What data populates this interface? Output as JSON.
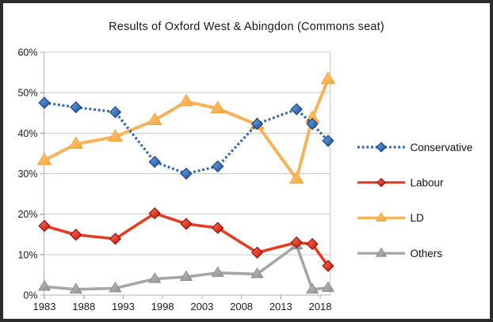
{
  "title": "Results of Oxford West & Abingdon (Commons seat)",
  "frame": {
    "border_color": "#2c2c2c",
    "background": "#ffffff"
  },
  "axes": {
    "grid_color": "#c9c9c9",
    "axis_color": "#b0b0b0",
    "label_color": "#1a1a1a"
  },
  "chart_data": {
    "type": "line",
    "title": "Results of Oxford West & Abingdon (Commons seat)",
    "xlabel": "",
    "ylabel": "",
    "x": [
      1983,
      1987,
      1992,
      1997,
      2001,
      2005,
      2010,
      2015,
      2017,
      2019
    ],
    "x_ticks": [
      1983,
      1988,
      1993,
      1998,
      2003,
      2008,
      2013,
      2018
    ],
    "x_tick_labels": [
      "1983",
      "1988",
      "1993",
      "1998",
      "2003",
      "2008",
      "2013",
      "2018"
    ],
    "y_ticks": [
      0,
      10,
      20,
      30,
      40,
      50,
      60
    ],
    "y_tick_labels": [
      "0%",
      "10%",
      "20%",
      "30%",
      "40%",
      "50%",
      "60%"
    ],
    "ylim": [
      0,
      60
    ],
    "xlim": [
      1983,
      2019.5
    ],
    "y_unit": "%",
    "grid": true,
    "legend_position": "right",
    "series": [
      {
        "name": "Conservative",
        "values": [
          47.5,
          46.4,
          45.2,
          32.9,
          30.0,
          31.8,
          42.3,
          45.9,
          42.3,
          38.1
        ],
        "color": "#2a69b4",
        "line_style": "dotted",
        "marker": "diamond",
        "marker_fill": [
          "#6ea6e2",
          "#1b4f9e"
        ],
        "marker_stroke": "#17447f"
      },
      {
        "name": "Labour",
        "values": [
          17.1,
          14.9,
          13.9,
          20.2,
          17.6,
          16.6,
          10.5,
          13.0,
          12.6,
          7.2
        ],
        "color": "#e63c23",
        "line_style": "solid",
        "marker": "diamond",
        "marker_fill": [
          "#f4775d",
          "#cc1104"
        ],
        "marker_stroke": "#9b0e02"
      },
      {
        "name": "LD",
        "values": [
          33.3,
          37.3,
          39.1,
          43.2,
          47.8,
          46.1,
          42.1,
          28.7,
          43.7,
          53.3
        ],
        "color": "#f9b259",
        "line_style": "solid",
        "marker": "triangle",
        "marker_fill": [
          "#fcca7e",
          "#f7a635"
        ],
        "marker_stroke": "#f4a43e"
      },
      {
        "name": "Others",
        "values": [
          2.1,
          1.4,
          1.7,
          4.0,
          4.5,
          5.5,
          5.2,
          12.3,
          1.4,
          1.8
        ],
        "color": "#a6a6a6",
        "line_style": "solid",
        "marker": "triangle",
        "marker_fill": [
          "#c2c2c2",
          "#909090"
        ],
        "marker_stroke": "#8a8a8a"
      }
    ]
  }
}
